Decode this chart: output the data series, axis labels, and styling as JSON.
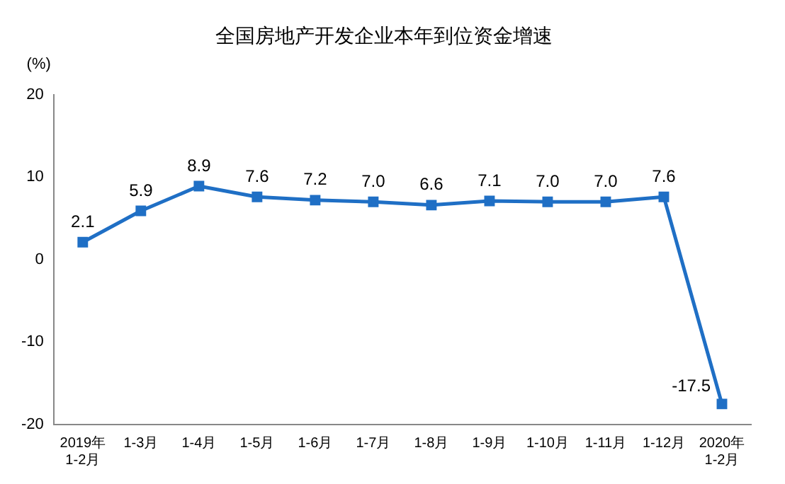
{
  "chart_data": {
    "type": "line",
    "title": "全国房地产开发企业本年到位资金增速",
    "ylabel": "(%)",
    "categories": [
      "2019年\n1-2月",
      "1-3月",
      "1-4月",
      "1-5月",
      "1-6月",
      "1-7月",
      "1-8月",
      "1-9月",
      "1-10月",
      "1-11月",
      "1-12月",
      "2020年\n1-2月"
    ],
    "series": [
      {
        "color": "#1f6fc5",
        "values": [
          2.1,
          5.9,
          8.9,
          7.6,
          7.2,
          7.0,
          6.6,
          7.1,
          7.0,
          7.0,
          7.6,
          -17.5
        ],
        "value_labels": [
          "2.1",
          "5.9",
          "8.9",
          "7.6",
          "7.2",
          "7.0",
          "6.6",
          "7.1",
          "7.0",
          "7.0",
          "7.6",
          "-17.5"
        ]
      }
    ],
    "ylim": [
      -20,
      20
    ],
    "yticks": [
      -20,
      -10,
      0,
      10,
      20
    ],
    "grid": false,
    "legend": false,
    "marker": "square",
    "line_style": "solid"
  }
}
